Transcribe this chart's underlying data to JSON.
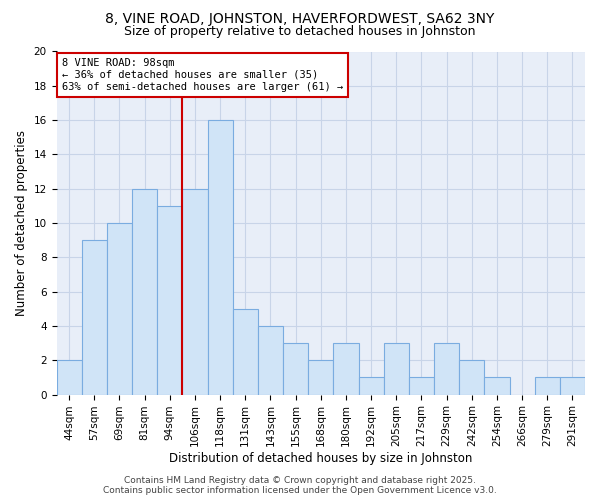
{
  "title1": "8, VINE ROAD, JOHNSTON, HAVERFORDWEST, SA62 3NY",
  "title2": "Size of property relative to detached houses in Johnston",
  "xlabel": "Distribution of detached houses by size in Johnston",
  "ylabel": "Number of detached properties",
  "categories": [
    "44sqm",
    "57sqm",
    "69sqm",
    "81sqm",
    "94sqm",
    "106sqm",
    "118sqm",
    "131sqm",
    "143sqm",
    "155sqm",
    "168sqm",
    "180sqm",
    "192sqm",
    "205sqm",
    "217sqm",
    "229sqm",
    "242sqm",
    "254sqm",
    "266sqm",
    "279sqm",
    "291sqm"
  ],
  "values": [
    2,
    9,
    10,
    12,
    11,
    12,
    16,
    5,
    4,
    3,
    2,
    3,
    1,
    3,
    1,
    3,
    2,
    1,
    0,
    1,
    1
  ],
  "bar_color": "#d0e4f7",
  "bar_edge_color": "#7aace0",
  "vline_index": 4.5,
  "vline_color": "#cc0000",
  "annotation_text": "8 VINE ROAD: 98sqm\n← 36% of detached houses are smaller (35)\n63% of semi-detached houses are larger (61) →",
  "annotation_box_facecolor": "#ffffff",
  "annotation_box_edgecolor": "#cc0000",
  "ylim": [
    0,
    20
  ],
  "yticks": [
    0,
    2,
    4,
    6,
    8,
    10,
    12,
    14,
    16,
    18,
    20
  ],
  "grid_color": "#c8d4e8",
  "plot_bg_color": "#e8eef8",
  "fig_bg_color": "#ffffff",
  "title_fontsize": 10,
  "subtitle_fontsize": 9,
  "axis_label_fontsize": 8.5,
  "tick_fontsize": 7.5,
  "annotation_fontsize": 7.5,
  "footer_text": "Contains HM Land Registry data © Crown copyright and database right 2025.\nContains public sector information licensed under the Open Government Licence v3.0.",
  "footer_fontsize": 6.5
}
